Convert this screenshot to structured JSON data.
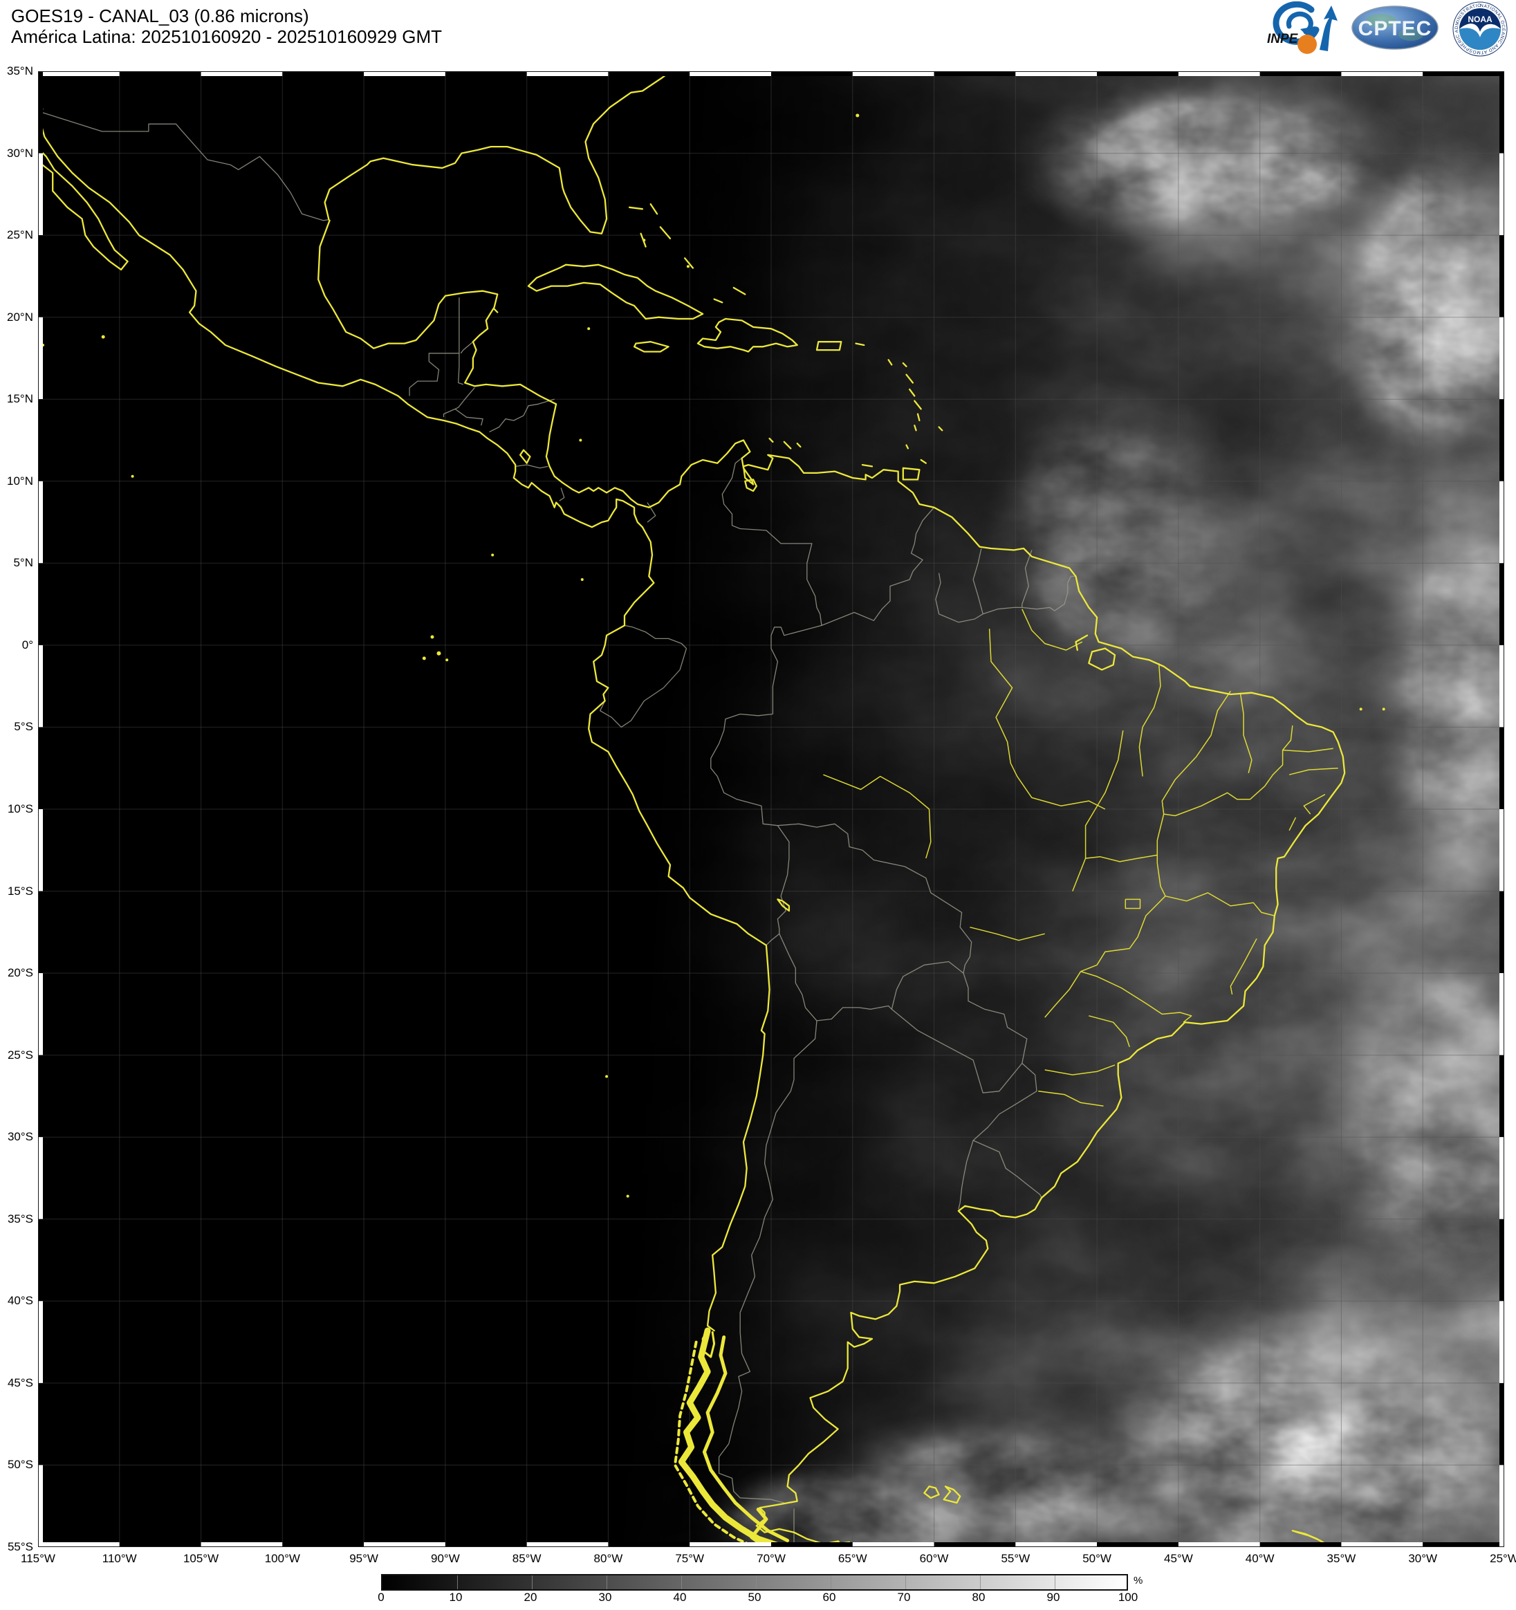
{
  "header": {
    "title_line1": "GOES19 - CANAL_03 (0.86 microns)",
    "title_line2": "América Latina: 202510160920 - 202510160929 GMT"
  },
  "logos": {
    "inpe_label": "INPE",
    "cptec_label": "CPTEC",
    "noaa_label": "NOAA",
    "noaa_ring_text": "NATIONAL OCEANIC AND ATMOSPHERIC ADMINISTRATION • U.S. DEPARTMENT OF COMMERCE"
  },
  "map": {
    "lat_labels": [
      "35°N",
      "30°N",
      "25°N",
      "20°N",
      "15°N",
      "10°N",
      "5°N",
      "0°",
      "5°S",
      "10°S",
      "15°S",
      "20°S",
      "25°S",
      "30°S",
      "35°S",
      "40°S",
      "45°S",
      "50°S",
      "55°S"
    ],
    "lon_labels": [
      "115°W",
      "110°W",
      "105°W",
      "100°W",
      "95°W",
      "90°W",
      "85°W",
      "80°W",
      "75°W",
      "70°W",
      "65°W",
      "60°W",
      "55°W",
      "50°W",
      "45°W",
      "40°W",
      "35°W",
      "30°W",
      "25°W"
    ],
    "coastline_color": "#ece83a",
    "border_line_color": "#9a9a8c",
    "background_color": "#000000"
  },
  "colorbar": {
    "tick_labels": [
      "0",
      "10",
      "20",
      "30",
      "40",
      "50",
      "60",
      "70",
      "80",
      "90",
      "100"
    ],
    "unit_label": "%",
    "gradient_start": "#000000",
    "gradient_end": "#ffffff"
  }
}
